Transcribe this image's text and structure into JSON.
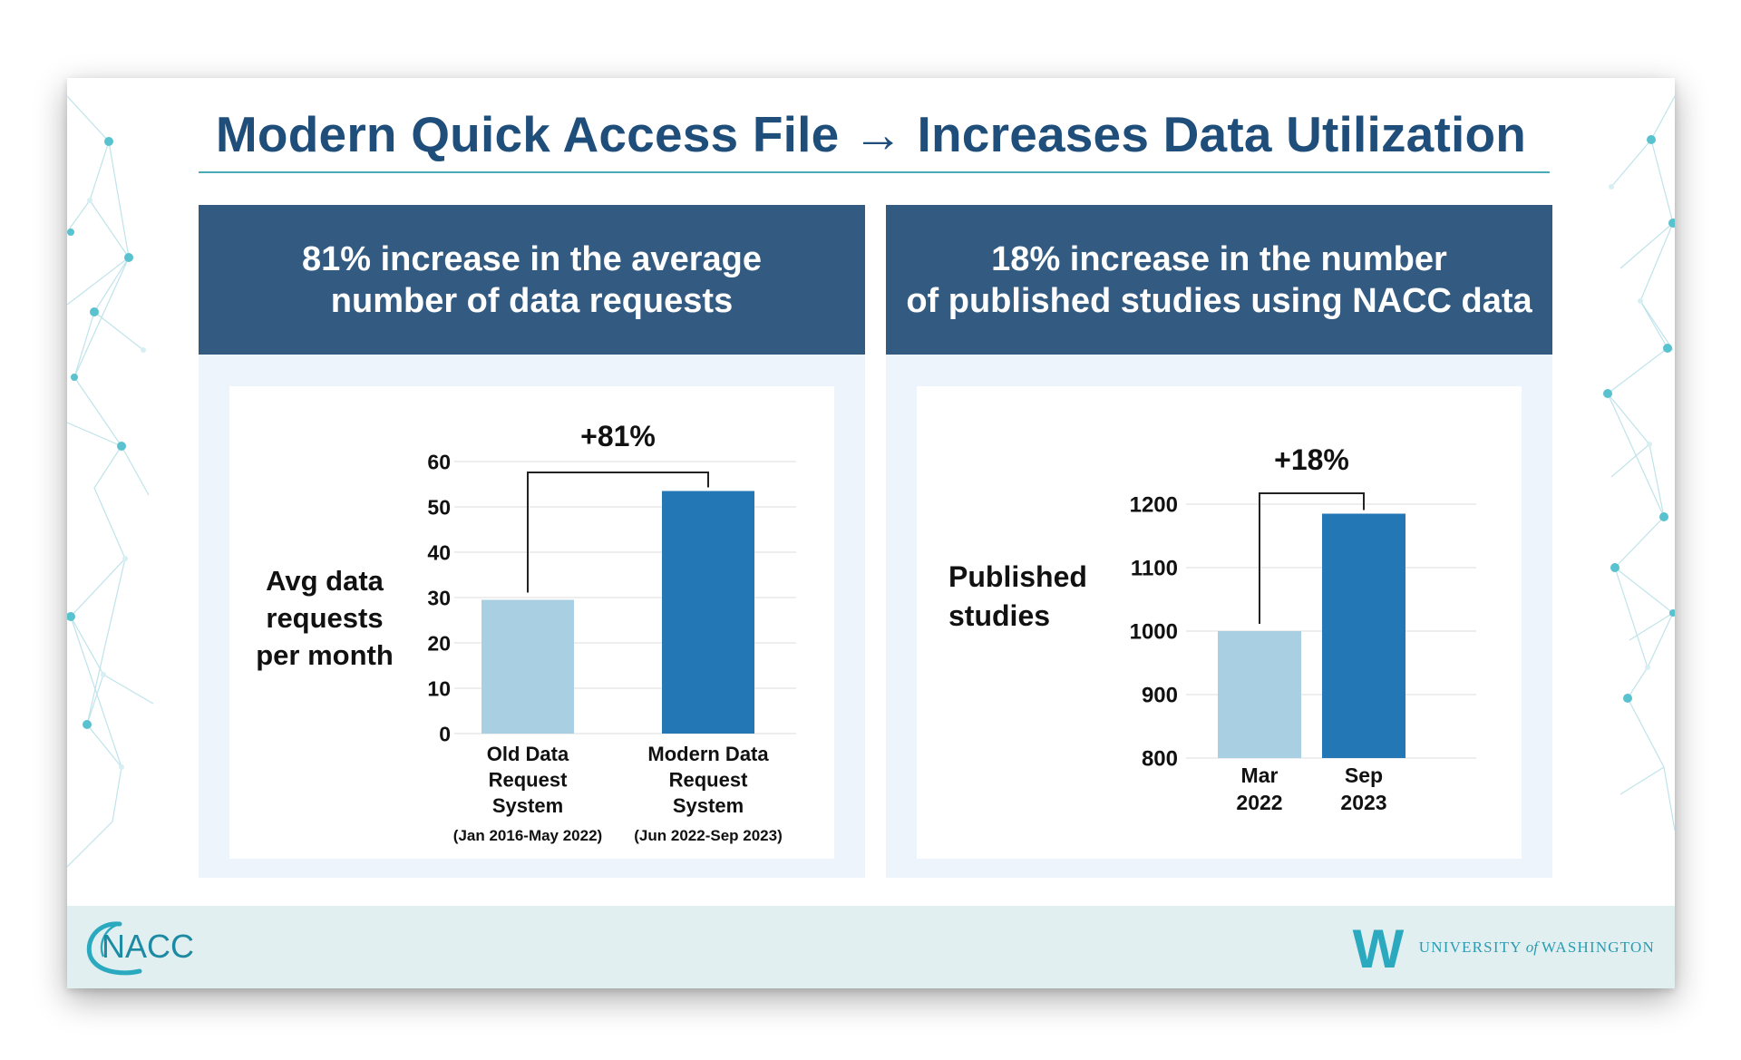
{
  "slide": {
    "title": "Modern Quick Access File → Increases Data Utilization"
  },
  "panels": [
    {
      "header": "81% increase in the average\nnumber of data requests"
    },
    {
      "header": "18% increase in the number\nof published studies using NACC data"
    }
  ],
  "chart_data": [
    {
      "type": "bar",
      "ylabel": "Avg data\nrequests\nper month",
      "ylim": [
        0,
        60
      ],
      "yticks": [
        0,
        10,
        20,
        30,
        40,
        50,
        60
      ],
      "grid": true,
      "categories": [
        {
          "label": "Old Data\nRequest\nSystem",
          "sublabel": "(Jan 2016-May 2022)"
        },
        {
          "label": "Modern Data\nRequest\nSystem",
          "sublabel": "(Jun 2022-Sep 2023)"
        }
      ],
      "values": [
        29.5,
        53.5
      ],
      "colors": [
        "#a9cfe3",
        "#2277b4"
      ],
      "annotation": "+81%"
    },
    {
      "type": "bar",
      "ylabel": "Published\nstudies",
      "ylim": [
        800,
        1200
      ],
      "yticks": [
        800,
        900,
        1000,
        1100,
        1200
      ],
      "grid": true,
      "categories": [
        {
          "label": "Mar\n2022"
        },
        {
          "label": "Sep\n2023"
        }
      ],
      "values": [
        1000,
        1185
      ],
      "colors": [
        "#a9cfe3",
        "#2277b4"
      ],
      "annotation": "+18%"
    }
  ],
  "footer": {
    "left_logo_text": "NACC",
    "right_logo_mark": "W",
    "right_logo_text_1": "UNIVERSITY",
    "right_logo_text_of": "of",
    "right_logo_text_2": "WASHINGTON"
  },
  "colors": {
    "title": "#1f4e7b",
    "panel_header": "#335a80",
    "panel_bg": "#edf4fb",
    "bar_light": "#a9cfe3",
    "bar_dark": "#2277b4",
    "accent_teal": "#2aa9bf",
    "footer_bg": "#e2eff1"
  }
}
